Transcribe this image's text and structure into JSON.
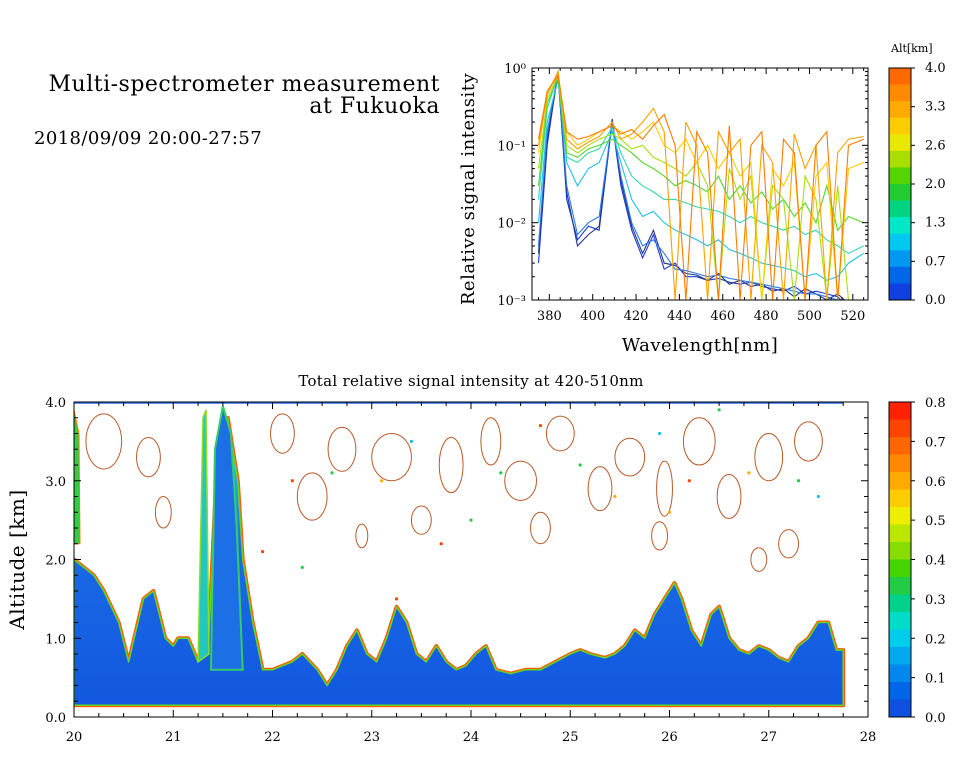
{
  "header": {
    "title_line1": "Multi-spectrometer measurement",
    "title_line2": "at Fukuoka",
    "datetime": "2018/09/09 20:00-27:57"
  },
  "chart_data": [
    {
      "type": "line",
      "title": "",
      "xlabel": "Wavelength[nm]",
      "ylabel": "Relative signal intensity",
      "yscale": "log",
      "xlim": [
        372,
        527
      ],
      "ylim": [
        0.001,
        1
      ],
      "x_ticks": [
        380,
        400,
        420,
        440,
        460,
        480,
        500,
        520
      ],
      "y_ticks": [
        {
          "value": 0.001,
          "label": "10⁻³"
        },
        {
          "value": 0.01,
          "label": "10⁻²"
        },
        {
          "value": 0.1,
          "label": "10⁻¹"
        },
        {
          "value": 1,
          "label": "10⁰"
        }
      ],
      "colorbar": {
        "label": "Alt[km]",
        "ticks": [
          "4.0",
          "3.3",
          "2.6",
          "2.0",
          "1.3",
          "0.7",
          "0.0"
        ],
        "colors": [
          "#ff6a00",
          "#ff8a00",
          "#ffaa00",
          "#ffcc00",
          "#e8e800",
          "#aadd00",
          "#55d400",
          "#22cc33",
          "#00d480",
          "#00e8c8",
          "#00c8f0",
          "#0098f0",
          "#0068e8",
          "#1040e0"
        ]
      },
      "series": [
        {
          "color": "#1a3ad6",
          "x": [
            375,
            379,
            384,
            388,
            393,
            398,
            403,
            409,
            413,
            418,
            423,
            428,
            433,
            438,
            443,
            448,
            453,
            458,
            463,
            468,
            473,
            478,
            483,
            488,
            493,
            498,
            503,
            508,
            513,
            518
          ],
          "y": [
            0.003,
            0.1,
            0.9,
            0.02,
            0.006,
            0.009,
            0.008,
            0.2,
            0.03,
            0.008,
            0.0035,
            0.007,
            0.0025,
            0.003,
            0.002,
            0.002,
            0.0018,
            0.0019,
            0.0017,
            0.0016,
            0.0017,
            0.0015,
            0.0014,
            0.0013,
            0.0015,
            0.0012,
            0.0013,
            0.0012,
            0.0011,
            0.0008
          ]
        },
        {
          "color": "#203880",
          "x": [
            375,
            379,
            384,
            388,
            393,
            398,
            403,
            409,
            413,
            418,
            423,
            428,
            433,
            438,
            443,
            448,
            453,
            458,
            463,
            468,
            473,
            478,
            483,
            488,
            493,
            498,
            503,
            508,
            513,
            518
          ],
          "y": [
            0.004,
            0.12,
            0.8,
            0.025,
            0.005,
            0.007,
            0.009,
            0.22,
            0.035,
            0.009,
            0.004,
            0.008,
            0.003,
            0.0028,
            0.0022,
            0.0021,
            0.0018,
            0.0022,
            0.0016,
            0.0018,
            0.0015,
            0.0016,
            0.0013,
            0.0014,
            0.0011,
            0.0014,
            0.0012,
            0.001,
            0.0012,
            0.0009
          ]
        },
        {
          "color": "#2a7ae8",
          "x": [
            375,
            379,
            384,
            388,
            393,
            398,
            403,
            409,
            413,
            418,
            423,
            428,
            433,
            438,
            443,
            448,
            453,
            458,
            463,
            468,
            473,
            478,
            483,
            488,
            493,
            498,
            503,
            508,
            513,
            518
          ],
          "y": [
            0.005,
            0.15,
            0.85,
            0.03,
            0.007,
            0.01,
            0.012,
            0.2,
            0.04,
            0.01,
            0.005,
            0.006,
            0.004,
            0.0025,
            0.0024,
            0.0022,
            0.002,
            0.0021,
            0.0019,
            0.0018,
            0.0017,
            0.0016,
            0.0015,
            0.0014,
            0.0013,
            0.0012,
            0.0012,
            0.0011,
            0.001,
            0.0009
          ]
        },
        {
          "color": "#22bfe6",
          "x": [
            375,
            379,
            384,
            388,
            393,
            398,
            403,
            409,
            413,
            418,
            423,
            428,
            433,
            438,
            443,
            448,
            453,
            458,
            463,
            468,
            473,
            478,
            483,
            488,
            493,
            498,
            503,
            508,
            513,
            518,
            525
          ],
          "y": [
            0.01,
            0.2,
            0.7,
            0.06,
            0.03,
            0.05,
            0.06,
            0.15,
            0.06,
            0.02,
            0.012,
            0.014,
            0.01,
            0.008,
            0.007,
            0.006,
            0.005,
            0.006,
            0.0045,
            0.004,
            0.0035,
            0.003,
            0.0028,
            0.0026,
            0.0024,
            0.002,
            0.0022,
            0.0018,
            0.002,
            0.003,
            0.004
          ]
        },
        {
          "color": "#33d6b0",
          "x": [
            375,
            379,
            384,
            388,
            393,
            398,
            403,
            409,
            413,
            418,
            423,
            428,
            433,
            438,
            443,
            448,
            453,
            458,
            463,
            468,
            473,
            478,
            483,
            488,
            493,
            498,
            503,
            508,
            513,
            518,
            525
          ],
          "y": [
            0.02,
            0.3,
            0.8,
            0.07,
            0.06,
            0.08,
            0.09,
            0.17,
            0.08,
            0.04,
            0.03,
            0.025,
            0.02,
            0.02,
            0.018,
            0.016,
            0.015,
            0.014,
            0.012,
            0.01,
            0.012,
            0.01,
            0.009,
            0.008,
            0.009,
            0.007,
            0.008,
            0.006,
            0.005,
            0.004,
            0.005
          ]
        },
        {
          "color": "#55d42c",
          "x": [
            375,
            379,
            384,
            388,
            393,
            398,
            403,
            409,
            413,
            418,
            423,
            428,
            433,
            438,
            443,
            448,
            453,
            458,
            463,
            468,
            473,
            478,
            483,
            488,
            493,
            498,
            503,
            508,
            513,
            518,
            525
          ],
          "y": [
            0.03,
            0.35,
            0.75,
            0.08,
            0.07,
            0.09,
            0.1,
            0.12,
            0.1,
            0.08,
            0.06,
            0.05,
            0.04,
            0.03,
            0.035,
            0.03,
            0.025,
            0.04,
            0.02,
            0.03,
            0.018,
            0.025,
            0.015,
            0.02,
            0.012,
            0.018,
            0.01,
            0.03,
            0.008,
            0.012,
            0.01
          ]
        },
        {
          "color": "#aadd10",
          "x": [
            375,
            379,
            384,
            388,
            393,
            398,
            403,
            409,
            413,
            418,
            423,
            428,
            433,
            438,
            443,
            448,
            453,
            458,
            463,
            468,
            473,
            478,
            483,
            488,
            493,
            498,
            503,
            508,
            513,
            518,
            525
          ],
          "y": [
            0.05,
            0.4,
            0.8,
            0.1,
            0.08,
            0.1,
            0.12,
            0.14,
            0.12,
            0.09,
            0.1,
            0.07,
            0.06,
            0.05,
            0.04,
            0.06,
            0.03,
            0.001,
            0.05,
            0.02,
            0.04,
            0.001,
            0.03,
            0.02,
            0.001,
            0.04,
            0.02,
            0.001,
            0.03,
            0.001,
            0.001
          ]
        },
        {
          "color": "#ffcc00",
          "x": [
            375,
            379,
            384,
            388,
            393,
            398,
            403,
            409,
            413,
            418,
            423,
            428,
            433,
            438,
            443,
            448,
            453,
            458,
            463,
            468,
            473,
            478,
            483,
            488,
            493,
            498,
            503,
            508,
            513,
            518,
            525
          ],
          "y": [
            0.08,
            0.5,
            0.85,
            0.15,
            0.1,
            0.12,
            0.15,
            0.18,
            0.15,
            0.12,
            0.15,
            0.2,
            0.1,
            0.08,
            0.12,
            0.06,
            0.1,
            0.05,
            0.08,
            0.04,
            0.06,
            0.001,
            0.05,
            0.03,
            0.06,
            0.001,
            0.04,
            0.06,
            0.001,
            0.05,
            0.06
          ]
        },
        {
          "color": "#ffa000",
          "x": [
            375,
            379,
            384,
            388,
            393,
            398,
            403,
            409,
            413,
            418,
            423,
            428,
            433,
            438,
            443,
            448,
            453,
            458,
            463,
            468,
            473,
            478,
            483,
            488,
            493,
            498,
            503,
            508,
            513,
            518,
            525
          ],
          "y": [
            0.1,
            0.45,
            0.9,
            0.12,
            0.09,
            0.11,
            0.13,
            0.2,
            0.12,
            0.14,
            0.2,
            0.3,
            0.15,
            0.001,
            0.2,
            0.1,
            0.001,
            0.15,
            0.08,
            0.12,
            0.001,
            0.1,
            0.06,
            0.001,
            0.14,
            0.05,
            0.1,
            0.001,
            0.08,
            0.12,
            0.13
          ]
        },
        {
          "color": "#ff7a00",
          "x": [
            375,
            379,
            384,
            388,
            393,
            398,
            403,
            409,
            413,
            418,
            423,
            428,
            433,
            438,
            443,
            448,
            453,
            458,
            463,
            468,
            473,
            478,
            483,
            488,
            493,
            498,
            503,
            508,
            513,
            518,
            525
          ],
          "y": [
            0.12,
            0.5,
            0.8,
            0.15,
            0.12,
            0.13,
            0.15,
            0.18,
            0.14,
            0.16,
            0.12,
            0.18,
            0.25,
            0.1,
            0.001,
            0.15,
            0.08,
            0.001,
            0.18,
            0.001,
            0.1,
            0.15,
            0.001,
            0.12,
            0.08,
            0.001,
            0.1,
            0.15,
            0.001,
            0.1,
            0.12
          ]
        }
      ]
    },
    {
      "type": "heatmap",
      "title": "Total relative signal intensity at 420-510nm",
      "xlabel": "",
      "ylabel": "Altitude [km]",
      "xlim": [
        20,
        28
      ],
      "ylim": [
        0,
        4
      ],
      "x_ticks": [
        "20",
        "21",
        "22",
        "23",
        "24",
        "25",
        "26",
        "27",
        "28"
      ],
      "y_ticks": [
        "0.0",
        "1.0",
        "2.0",
        "3.0",
        "4.0"
      ],
      "data_xrange": [
        20,
        27.75
      ],
      "data_yrange": [
        0.15,
        4.0
      ],
      "low_layer_top_km": [
        [
          20.0,
          2.0
        ],
        [
          20.1,
          1.9
        ],
        [
          20.2,
          1.8
        ],
        [
          20.3,
          1.6
        ],
        [
          20.45,
          1.2
        ],
        [
          20.55,
          0.7
        ],
        [
          20.7,
          1.5
        ],
        [
          20.8,
          1.6
        ],
        [
          20.92,
          1.0
        ],
        [
          21.0,
          0.9
        ],
        [
          21.05,
          1.0
        ],
        [
          21.15,
          1.0
        ],
        [
          21.25,
          0.7
        ],
        [
          21.35,
          0.8
        ],
        [
          21.45,
          3.5
        ],
        [
          21.55,
          3.8
        ],
        [
          21.65,
          3.0
        ],
        [
          21.7,
          2.0
        ],
        [
          21.8,
          1.2
        ],
        [
          21.9,
          0.6
        ],
        [
          22.0,
          0.6
        ],
        [
          22.1,
          0.65
        ],
        [
          22.2,
          0.7
        ],
        [
          22.3,
          0.8
        ],
        [
          22.45,
          0.6
        ],
        [
          22.55,
          0.4
        ],
        [
          22.65,
          0.6
        ],
        [
          22.75,
          0.9
        ],
        [
          22.85,
          1.1
        ],
        [
          22.95,
          0.8
        ],
        [
          23.05,
          0.7
        ],
        [
          23.15,
          1.0
        ],
        [
          23.25,
          1.4
        ],
        [
          23.35,
          1.2
        ],
        [
          23.45,
          0.8
        ],
        [
          23.55,
          0.7
        ],
        [
          23.65,
          0.9
        ],
        [
          23.75,
          0.7
        ],
        [
          23.85,
          0.6
        ],
        [
          23.95,
          0.65
        ],
        [
          24.05,
          0.8
        ],
        [
          24.15,
          0.9
        ],
        [
          24.25,
          0.6
        ],
        [
          24.4,
          0.55
        ],
        [
          24.55,
          0.6
        ],
        [
          24.7,
          0.6
        ],
        [
          24.85,
          0.7
        ],
        [
          25.0,
          0.8
        ],
        [
          25.1,
          0.85
        ],
        [
          25.2,
          0.8
        ],
        [
          25.35,
          0.75
        ],
        [
          25.45,
          0.8
        ],
        [
          25.55,
          0.9
        ],
        [
          25.65,
          1.1
        ],
        [
          25.75,
          1.0
        ],
        [
          25.85,
          1.3
        ],
        [
          25.95,
          1.5
        ],
        [
          26.05,
          1.7
        ],
        [
          26.12,
          1.5
        ],
        [
          26.22,
          1.1
        ],
        [
          26.32,
          0.9
        ],
        [
          26.42,
          1.3
        ],
        [
          26.5,
          1.4
        ],
        [
          26.6,
          1.0
        ],
        [
          26.7,
          0.85
        ],
        [
          26.8,
          0.8
        ],
        [
          26.9,
          0.9
        ],
        [
          27.0,
          0.85
        ],
        [
          27.1,
          0.75
        ],
        [
          27.2,
          0.7
        ],
        [
          27.3,
          0.9
        ],
        [
          27.4,
          1.0
        ],
        [
          27.5,
          1.2
        ],
        [
          27.6,
          1.2
        ],
        [
          27.68,
          0.85
        ],
        [
          27.75,
          0.85
        ]
      ],
      "colorbar": {
        "range": [
          0.0,
          0.8
        ],
        "ticks": [
          "0.8",
          "0.7",
          "0.6",
          "0.5",
          "0.4",
          "0.3",
          "0.2",
          "0.1",
          "0.0"
        ],
        "colors": [
          "#ff2200",
          "#ff4400",
          "#ff6600",
          "#ff8800",
          "#ffaa00",
          "#ffcc00",
          "#eeee00",
          "#bbe600",
          "#88dd00",
          "#44d400",
          "#22cc44",
          "#00d28c",
          "#00dcc8",
          "#00ccee",
          "#00a8f0",
          "#0088ee",
          "#0066e8",
          "#1050e0"
        ]
      }
    }
  ]
}
